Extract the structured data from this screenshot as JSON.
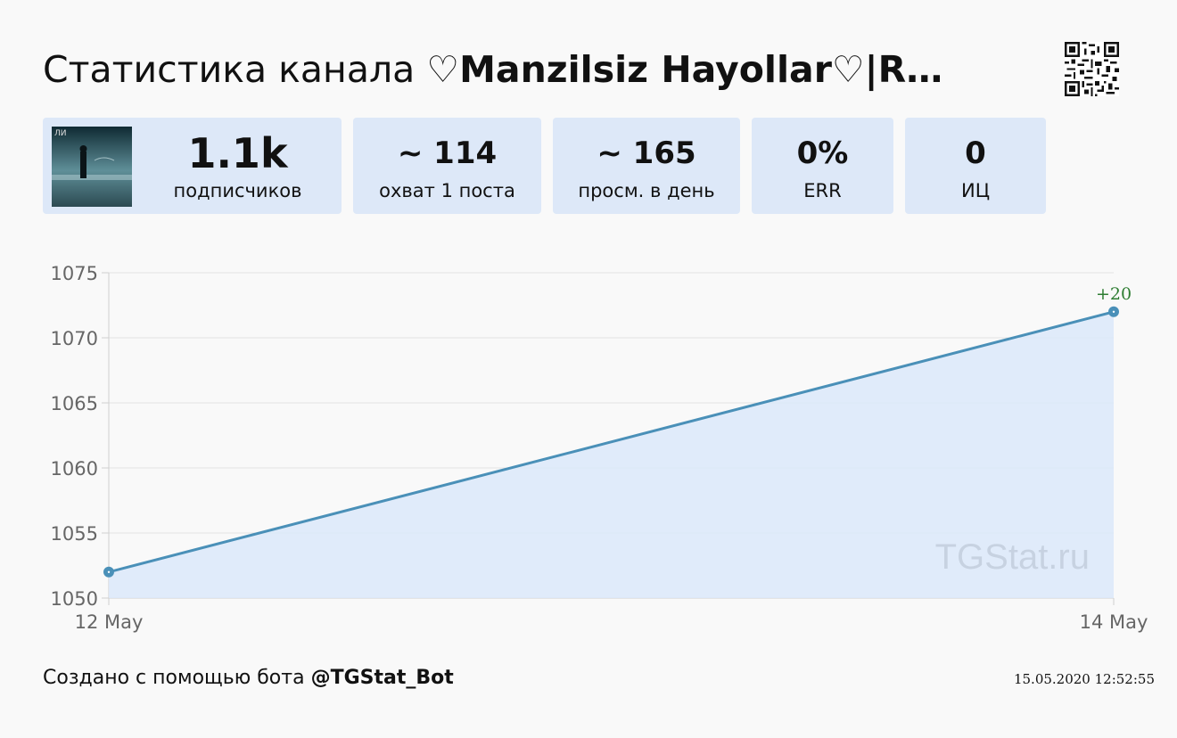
{
  "header": {
    "title_prefix": "Статистика канала ",
    "channel_name": "♡Manzilsiz Hayollar♡|R…"
  },
  "stats": [
    {
      "value": "1.1k",
      "label": "подписчиков"
    },
    {
      "value": "~ 114",
      "label": "охват 1 поста"
    },
    {
      "value": "~ 165",
      "label": "просм. в день"
    },
    {
      "value": "0%",
      "label": "ERR"
    },
    {
      "value": "0",
      "label": "ИЦ"
    }
  ],
  "chart_data": {
    "type": "line",
    "x": [
      "12 May",
      "14 May"
    ],
    "series": [
      {
        "values": [
          1052,
          1072
        ]
      }
    ],
    "annotations": [
      {
        "x": "14 May",
        "text": "+20"
      }
    ],
    "ylim": [
      1050,
      1075
    ],
    "yticks": [
      1050,
      1055,
      1060,
      1065,
      1070,
      1075
    ],
    "grid": true,
    "watermark": "TGStat.ru",
    "line_color": "#4a90b8",
    "fill_color": "#dce9fa",
    "annotation_color": "#2e7d32"
  },
  "footer": {
    "created_prefix": "Создано с помощью бота ",
    "bot_name": "@TGStat_Bot",
    "timestamp": "15.05.2020 12:52:55"
  },
  "icons": {
    "qr": "qr-code-icon",
    "avatar": "channel-avatar"
  }
}
